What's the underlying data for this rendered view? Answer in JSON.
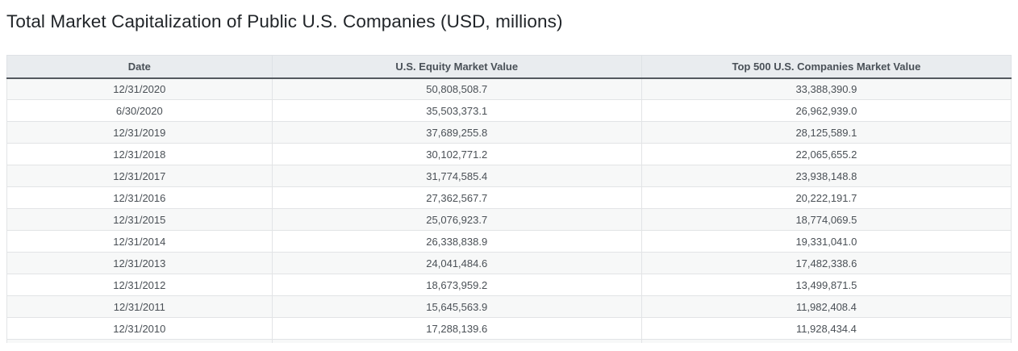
{
  "page": {
    "title": "Total Market Capitalization of Public U.S. Companies (USD, millions)"
  },
  "colors": {
    "title_text": "#212529",
    "header_bg": "#e9ecef",
    "header_text": "#495057",
    "header_bottom_border": "#54595f",
    "row_stripe": "#f7f8f8",
    "grid_line": "#e2e4e6",
    "cell_text": "#4a5056"
  },
  "chart_data": {
    "type": "table",
    "title": "Total Market Capitalization of Public U.S. Companies (USD, millions)",
    "columns": [
      "Date",
      "U.S. Equity Market Value",
      "Top 500 U.S. Companies Market Value"
    ],
    "rows": [
      [
        "12/31/2020",
        "50,808,508.7",
        "33,388,390.9"
      ],
      [
        "6/30/2020",
        "35,503,373.1",
        "26,962,939.0"
      ],
      [
        "12/31/2019",
        "37,689,255.8",
        "28,125,589.1"
      ],
      [
        "12/31/2018",
        "30,102,771.2",
        "22,065,655.2"
      ],
      [
        "12/31/2017",
        "31,774,585.4",
        "23,938,148.8"
      ],
      [
        "12/31/2016",
        "27,362,567.7",
        "20,222,191.7"
      ],
      [
        "12/31/2015",
        "25,076,923.7",
        "18,774,069.5"
      ],
      [
        "12/31/2014",
        "26,338,838.9",
        "19,331,041.0"
      ],
      [
        "12/31/2013",
        "24,041,484.6",
        "17,482,338.6"
      ],
      [
        "12/31/2012",
        "18,673,959.2",
        "13,499,871.5"
      ],
      [
        "12/31/2011",
        "15,645,563.9",
        "11,982,408.4"
      ],
      [
        "12/31/2010",
        "17,288,139.6",
        "11,928,434.4"
      ]
    ]
  }
}
